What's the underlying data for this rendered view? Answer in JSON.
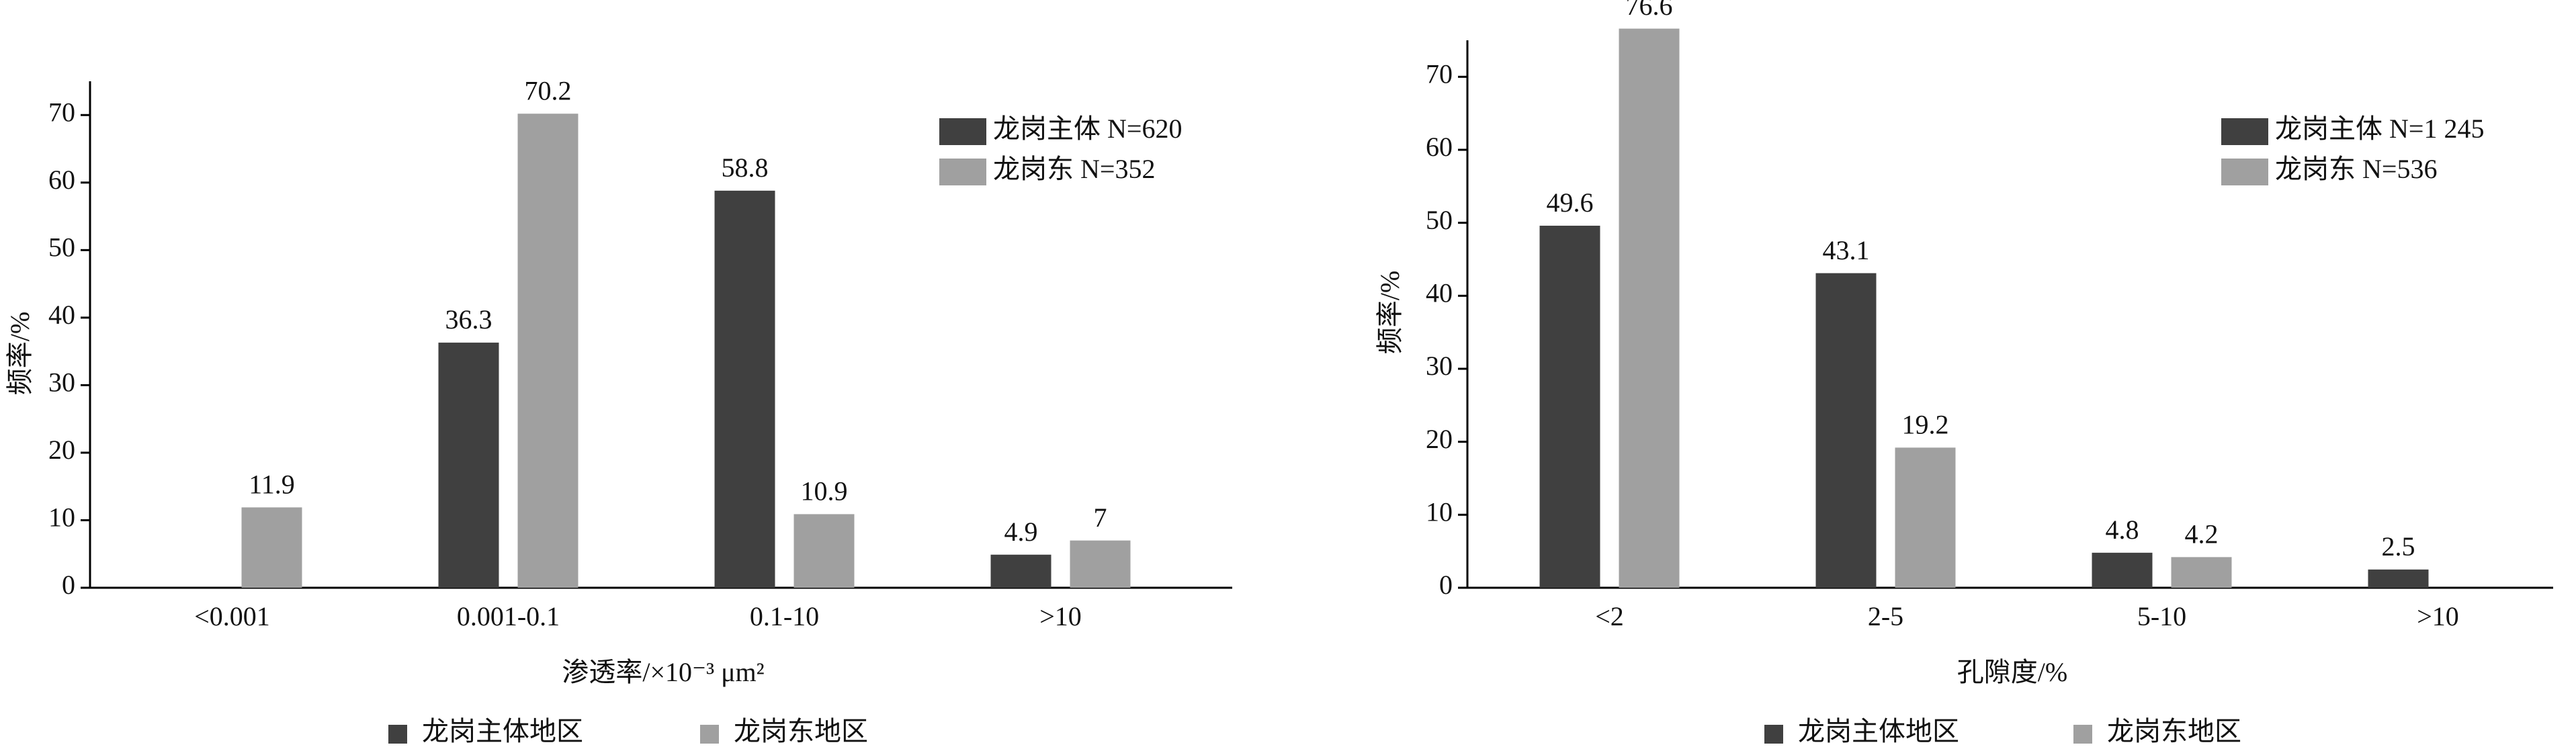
{
  "chart_data": [
    {
      "type": "bar",
      "x_label": "渗透率/×10⁻³ μm²",
      "y_label": "频率/%",
      "categories": [
        "<0.001",
        "0.001-0.1",
        "0.1-10",
        ">10"
      ],
      "series": [
        {
          "name": "龙岗主体 N=620",
          "color": "#404040",
          "values": [
            null,
            36.3,
            58.8,
            4.9
          ]
        },
        {
          "name": "龙岗东 N=352",
          "color": "#a0a0a0",
          "values": [
            11.9,
            70.2,
            10.9,
            7
          ]
        }
      ],
      "ylim": [
        0,
        75
      ],
      "yticks": [
        0,
        10,
        20,
        30,
        40,
        50,
        60,
        70
      ],
      "legend": "upper right",
      "bottom_legend": [
        {
          "name": "龙岗主体地区",
          "color": "#404040"
        },
        {
          "name": "龙岗东地区",
          "color": "#a0a0a0"
        }
      ]
    },
    {
      "type": "bar",
      "x_label": "孔隙度/%",
      "y_label": "频率/%",
      "categories": [
        "<2",
        "2-5",
        "5-10",
        ">10"
      ],
      "series": [
        {
          "name": "龙岗主体 N=1 245",
          "color": "#404040",
          "values": [
            49.6,
            43.1,
            4.8,
            2.5
          ]
        },
        {
          "name": "龙岗东 N=536",
          "color": "#a0a0a0",
          "values": [
            76.6,
            19.2,
            4.2,
            null
          ]
        }
      ],
      "ylim": [
        0,
        75
      ],
      "yticks": [
        0,
        10,
        20,
        30,
        40,
        50,
        60,
        70
      ],
      "legend": "upper right",
      "bottom_legend": [
        {
          "name": "龙岗主体地区",
          "color": "#404040"
        },
        {
          "name": "龙岗东地区",
          "color": "#a0a0a0"
        }
      ]
    }
  ]
}
